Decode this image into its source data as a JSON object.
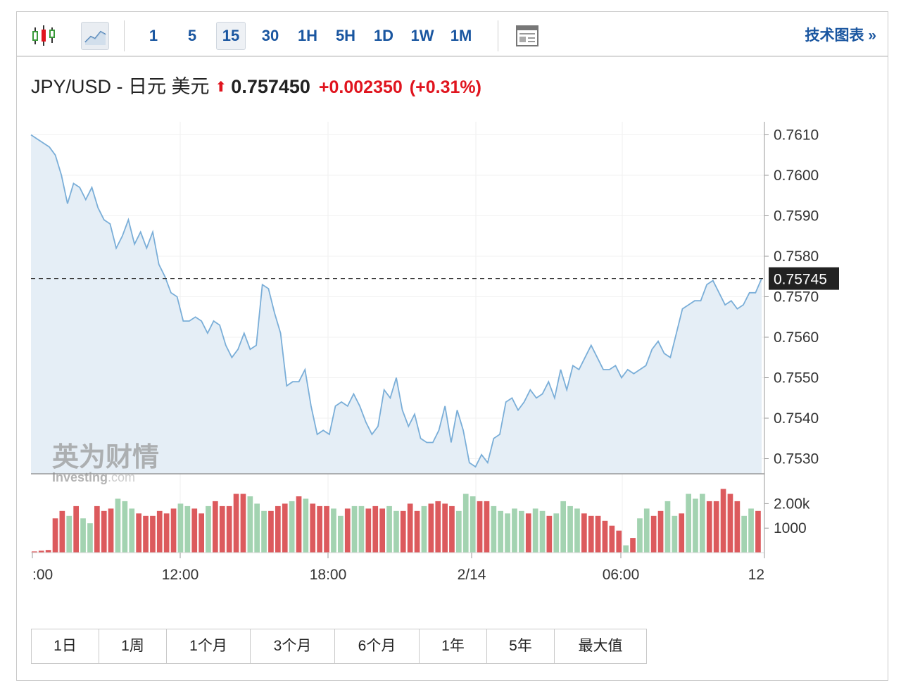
{
  "toolbar": {
    "intervals": [
      "1",
      "5",
      "15",
      "30",
      "1H",
      "5H",
      "1D",
      "1W",
      "1M"
    ],
    "active_interval": "15",
    "tech_link": "技术图表 »"
  },
  "header": {
    "pair": "JPY/USD - 日元 美元",
    "arrow": "⬆",
    "price": "0.757450",
    "change": "+0.002350",
    "change_pct": "(+0.31%)"
  },
  "watermark": {
    "cn": "英为财情",
    "en": "Investing",
    "suffix": ".com"
  },
  "periods": [
    "1日",
    "1周",
    "1个月",
    "3个月",
    "6个月",
    "1年",
    "5年",
    "最大值"
  ],
  "colors": {
    "accent": "#1a56a0",
    "up": "#e0141e",
    "line": "#7aaed8",
    "area": "#e5eef6",
    "vol_red": "#dc5a5d",
    "vol_green": "#a3d3b1"
  },
  "chart_data": [
    {
      "type": "area",
      "series": [
        {
          "values": [
            0.761,
            0.7609,
            0.7608,
            0.7607,
            0.7605,
            0.76,
            0.7593,
            0.7598,
            0.7597,
            0.7594,
            0.7597,
            0.7592,
            0.7589,
            0.7588,
            0.7582,
            0.7585,
            0.7589,
            0.7583,
            0.7586,
            0.7582,
            0.7586,
            0.7578,
            0.7575,
            0.7571,
            0.757,
            0.7564,
            0.7564,
            0.7565,
            0.7564,
            0.7561,
            0.7564,
            0.7563,
            0.7558,
            0.7555,
            0.7557,
            0.7561,
            0.7557,
            0.7558,
            0.7573,
            0.7572,
            0.7566,
            0.7561,
            0.7548,
            0.7549,
            0.7549,
            0.7552,
            0.7543,
            0.7536,
            0.7537,
            0.7536,
            0.7543,
            0.7544,
            0.7543,
            0.7546,
            0.7543,
            0.7539,
            0.7536,
            0.7538,
            0.7547,
            0.7545,
            0.755,
            0.7542,
            0.7538,
            0.7541,
            0.7535,
            0.7534,
            0.7534,
            0.7537,
            0.7543,
            0.7534,
            0.7542,
            0.7537,
            0.7529,
            0.7528,
            0.7531,
            0.7529,
            0.7535,
            0.7536,
            0.7544,
            0.7545,
            0.7542,
            0.7544,
            0.7547,
            0.7545,
            0.7546,
            0.7549,
            0.7545,
            0.7552,
            0.7547,
            0.7553,
            0.7552,
            0.7555,
            0.7558,
            0.7555,
            0.7552,
            0.7552,
            0.7553,
            0.755,
            0.7552,
            0.7551,
            0.7552,
            0.7553,
            0.7557,
            0.7559,
            0.7556,
            0.7555,
            0.7561,
            0.7567,
            0.7568,
            0.7569,
            0.7569,
            0.7573,
            0.7574,
            0.7571,
            0.7568,
            0.7569,
            0.7567,
            0.7568,
            0.7571,
            0.7571,
            0.75745
          ]
        }
      ],
      "ylim": [
        0.7526,
        0.7613
      ],
      "y_ticks": [
        "0.7610",
        "0.7600",
        "0.7590",
        "0.7580",
        "0.7570",
        "0.7560",
        "0.7550",
        "0.7540",
        "0.7530"
      ],
      "x_ticks": [
        ":00",
        "12:00",
        "18:00",
        "2/14",
        "06:00",
        "12"
      ],
      "last_value_label": "0.75745",
      "grid": true
    },
    {
      "type": "bar",
      "y_ticks": [
        "2.00k",
        "1000"
      ],
      "ylim": [
        0,
        2600
      ],
      "values": [
        50,
        80,
        110,
        1400,
        1700,
        1500,
        1900,
        1400,
        1200,
        1900,
        1700,
        1800,
        2200,
        2100,
        1800,
        1600,
        1500,
        1500,
        1700,
        1600,
        1800,
        2000,
        1900,
        1800,
        1600,
        1900,
        2100,
        1900,
        1900,
        2400,
        2400,
        2300,
        2000,
        1700,
        1700,
        1900,
        2000,
        2100,
        2300,
        2200,
        2000,
        1900,
        1900,
        1800,
        1500,
        1800,
        1900,
        1900,
        1800,
        1900,
        1800,
        1900,
        1700,
        1700,
        2000,
        1700,
        1900,
        2000,
        2100,
        2000,
        1900,
        1700,
        2400,
        2300,
        2100,
        2100,
        1900,
        1700,
        1600,
        1800,
        1700,
        1600,
        1800,
        1700,
        1500,
        1600,
        2100,
        1900,
        1800,
        1600,
        1500,
        1500,
        1300,
        1100,
        900,
        300,
        600,
        1400,
        1800,
        1500,
        1700,
        2100,
        1500,
        1600,
        2400,
        2200,
        2400,
        2100,
        2100,
        2600,
        2400,
        2100,
        1500,
        1800,
        1700
      ],
      "colors": [
        "r",
        "r",
        "r",
        "r",
        "r",
        "g",
        "r",
        "g",
        "g",
        "r",
        "r",
        "r",
        "g",
        "g",
        "g",
        "r",
        "r",
        "r",
        "r",
        "r",
        "r",
        "g",
        "g",
        "r",
        "r",
        "g",
        "r",
        "r",
        "r",
        "r",
        "r",
        "g",
        "g",
        "g",
        "r",
        "r",
        "r",
        "g",
        "r",
        "g",
        "r",
        "r",
        "r",
        "g",
        "g",
        "r",
        "g",
        "g",
        "r",
        "r",
        "r",
        "g",
        "g",
        "r",
        "r",
        "r",
        "g",
        "r",
        "r",
        "r",
        "r",
        "g",
        "g",
        "g",
        "r",
        "r",
        "g",
        "g",
        "g",
        "g",
        "g",
        "r",
        "g",
        "g",
        "r",
        "g",
        "g",
        "g",
        "g",
        "r",
        "r",
        "r",
        "r",
        "r",
        "r",
        "g",
        "r",
        "g",
        "g",
        "r",
        "r",
        "g",
        "g",
        "r",
        "g",
        "g",
        "g",
        "r",
        "r",
        "r",
        "r",
        "r",
        "g",
        "g",
        "r"
      ]
    }
  ]
}
